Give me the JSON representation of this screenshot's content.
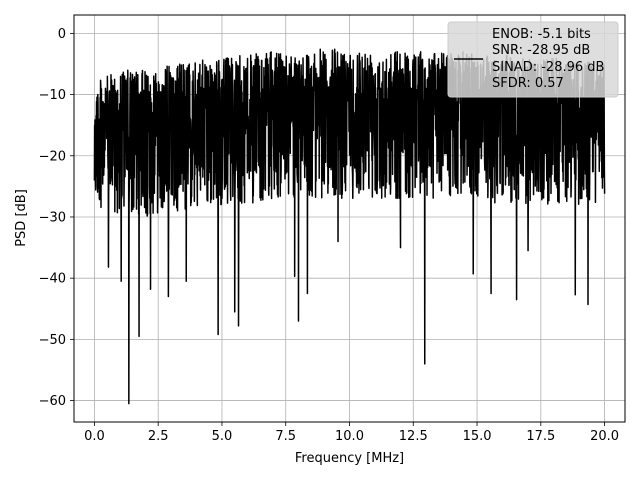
{
  "chart_data": {
    "type": "line",
    "title": "",
    "xlabel": "Frequency [MHz]",
    "ylabel": "PSD [dB]",
    "xlim": [
      -0.8,
      20.8
    ],
    "ylim": [
      -63.5,
      3
    ],
    "xticks": [
      0.0,
      2.5,
      5.0,
      7.5,
      10.0,
      12.5,
      15.0,
      17.5,
      20.0
    ],
    "xtick_labels": [
      "0.0",
      "2.5",
      "5.0",
      "7.5",
      "10.0",
      "12.5",
      "15.0",
      "17.5",
      "20.0"
    ],
    "yticks": [
      0,
      -10,
      -20,
      -30,
      -40,
      -50,
      -60
    ],
    "ytick_labels": [
      "0",
      "−10",
      "−20",
      "−30",
      "−40",
      "−50",
      "−60"
    ],
    "grid": true,
    "legend": {
      "placement": "top-right",
      "entries": [
        "ENOB: -5.1 bits",
        "SNR: -28.95 dB",
        "SINAD: -28.96 dB",
        "SFDR: 0.57"
      ]
    },
    "series": [
      {
        "color": "#000000",
        "x_range": [
          0.0,
          20.0
        ],
        "envelope": {
          "x": [
            0.0,
            0.5,
            1.0,
            2.0,
            3.0,
            4.0,
            5.0,
            6.0,
            7.0,
            8.0,
            9.0,
            10.0,
            11.0,
            12.0,
            13.0,
            14.0,
            15.0,
            16.0,
            17.0,
            18.0,
            19.0,
            20.0
          ],
          "upper_db": [
            -8,
            -7,
            -6,
            -6,
            -5,
            -4.5,
            -4,
            -3.5,
            -3,
            -3,
            -2.5,
            -2.5,
            -2.5,
            -2.5,
            -3,
            -3,
            -3,
            -3.5,
            -4,
            -4,
            -4.5,
            -5
          ],
          "typical_low_db": [
            -28,
            -29,
            -30,
            -30,
            -29,
            -29,
            -28,
            -28,
            -27,
            -27,
            -27,
            -27,
            -27,
            -27,
            -27,
            -27,
            -27,
            -28,
            -28,
            -28,
            -28,
            -28
          ]
        },
        "notable_dips": [
          {
            "x": 1.35,
            "y": -60.5
          },
          {
            "x": 0.55,
            "y": -38.2
          },
          {
            "x": 1.05,
            "y": -40.5
          },
          {
            "x": 1.75,
            "y": -49.5
          },
          {
            "x": 2.2,
            "y": -41.8
          },
          {
            "x": 2.9,
            "y": -43.0
          },
          {
            "x": 3.6,
            "y": -40.5
          },
          {
            "x": 4.85,
            "y": -49.2
          },
          {
            "x": 5.5,
            "y": -45.5
          },
          {
            "x": 5.65,
            "y": -47.8
          },
          {
            "x": 7.85,
            "y": -39.7
          },
          {
            "x": 8.0,
            "y": -47.0
          },
          {
            "x": 8.35,
            "y": -42.5
          },
          {
            "x": 12.0,
            "y": -35.0
          },
          {
            "x": 12.95,
            "y": -54.0
          },
          {
            "x": 14.85,
            "y": -39.3
          },
          {
            "x": 15.55,
            "y": -42.5
          },
          {
            "x": 16.55,
            "y": -43.5
          },
          {
            "x": 18.85,
            "y": -42.7
          },
          {
            "x": 19.35,
            "y": -44.3
          },
          {
            "x": 9.55,
            "y": -34.0
          },
          {
            "x": 17.0,
            "y": -35.5
          }
        ]
      }
    ]
  }
}
